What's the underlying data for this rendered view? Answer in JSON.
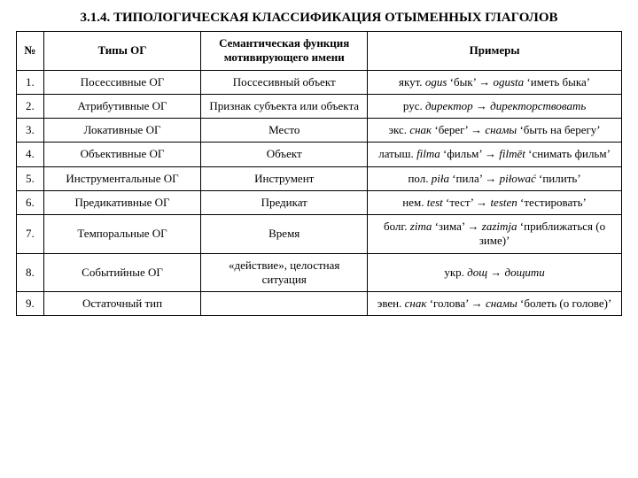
{
  "title": "3.1.4. ТИПОЛОГИЧЕСКАЯ КЛАССИФИКАЦИЯ ОТЫМЕННЫХ ГЛАГОЛОВ",
  "headers": {
    "num": "№",
    "types": "Типы ОГ",
    "func": "Семантическая функция мотивирующего имени",
    "examples": "Примеры"
  },
  "rows": [
    {
      "num": "1.",
      "type": "Посессивные ОГ",
      "func": "Поссесивный объект",
      "ex_pre": "якут. ",
      "ex_it1": "ogus",
      "ex_mid1": " ‘бык’ →  ",
      "ex_it2": "ogusta",
      "ex_mid2": " ‘иметь быка’"
    },
    {
      "num": "2.",
      "type": "Атрибутивные ОГ",
      "func": "Признак субъекта или объекта",
      "ex_pre": "рус. ",
      "ex_it1": "директор",
      "ex_mid1": " → ",
      "ex_it2": "директорствовать",
      "ex_mid2": ""
    },
    {
      "num": "3.",
      "type": "Локативные ОГ",
      "func": "Место",
      "ex_pre": "экс. ",
      "ex_it1": "снак",
      "ex_mid1": " ‘берег’ →  ",
      "ex_it2": "снамы",
      "ex_mid2": " ‘быть на берегу’"
    },
    {
      "num": "4.",
      "type": "Объективные ОГ",
      "func": "Объект",
      "ex_pre": "латыш. ",
      "ex_it1": "filma",
      "ex_mid1": " ‘фильм’ →  ",
      "ex_it2": "filmēt",
      "ex_mid2": " ‘снимать фильм’"
    },
    {
      "num": "5.",
      "type": "Инструментальные ОГ",
      "func": "Инструмент",
      "ex_pre": "пол. ",
      "ex_it1": "piła",
      "ex_mid1": " ‘пила’ → ",
      "ex_it2": "piłować",
      "ex_mid2": " ‘пилить’"
    },
    {
      "num": "6.",
      "type": "Предикативные ОГ",
      "func": "Предикат",
      "ex_pre": "нем. ",
      "ex_it1": "test",
      "ex_mid1": " ‘тест’ →  ",
      "ex_it2": "testen",
      "ex_mid2": " ‘тестировать’"
    },
    {
      "num": "7.",
      "type": "Темпоральные ОГ",
      "func": "Время",
      "ex_pre": "болг. ",
      "ex_it1": "zima",
      "ex_mid1": " ‘зима’ →  ",
      "ex_it2": "zazimja",
      "ex_mid2": " ‘приближаться (о зиме)’"
    },
    {
      "num": "8.",
      "type": "Событийные ОГ",
      "func": "«действие», целостная ситуация",
      "ex_pre": "укр. ",
      "ex_it1": "дощ",
      "ex_mid1": " →  ",
      "ex_it2": "дощити",
      "ex_mid2": ""
    },
    {
      "num": "9.",
      "type": "Остаточный тип",
      "func": "",
      "ex_pre": "эвен. ",
      "ex_it1": "снак",
      "ex_mid1": " ‘голова’ →  ",
      "ex_it2": "снамы",
      "ex_mid2": " ‘болеть (о голове)’"
    }
  ]
}
